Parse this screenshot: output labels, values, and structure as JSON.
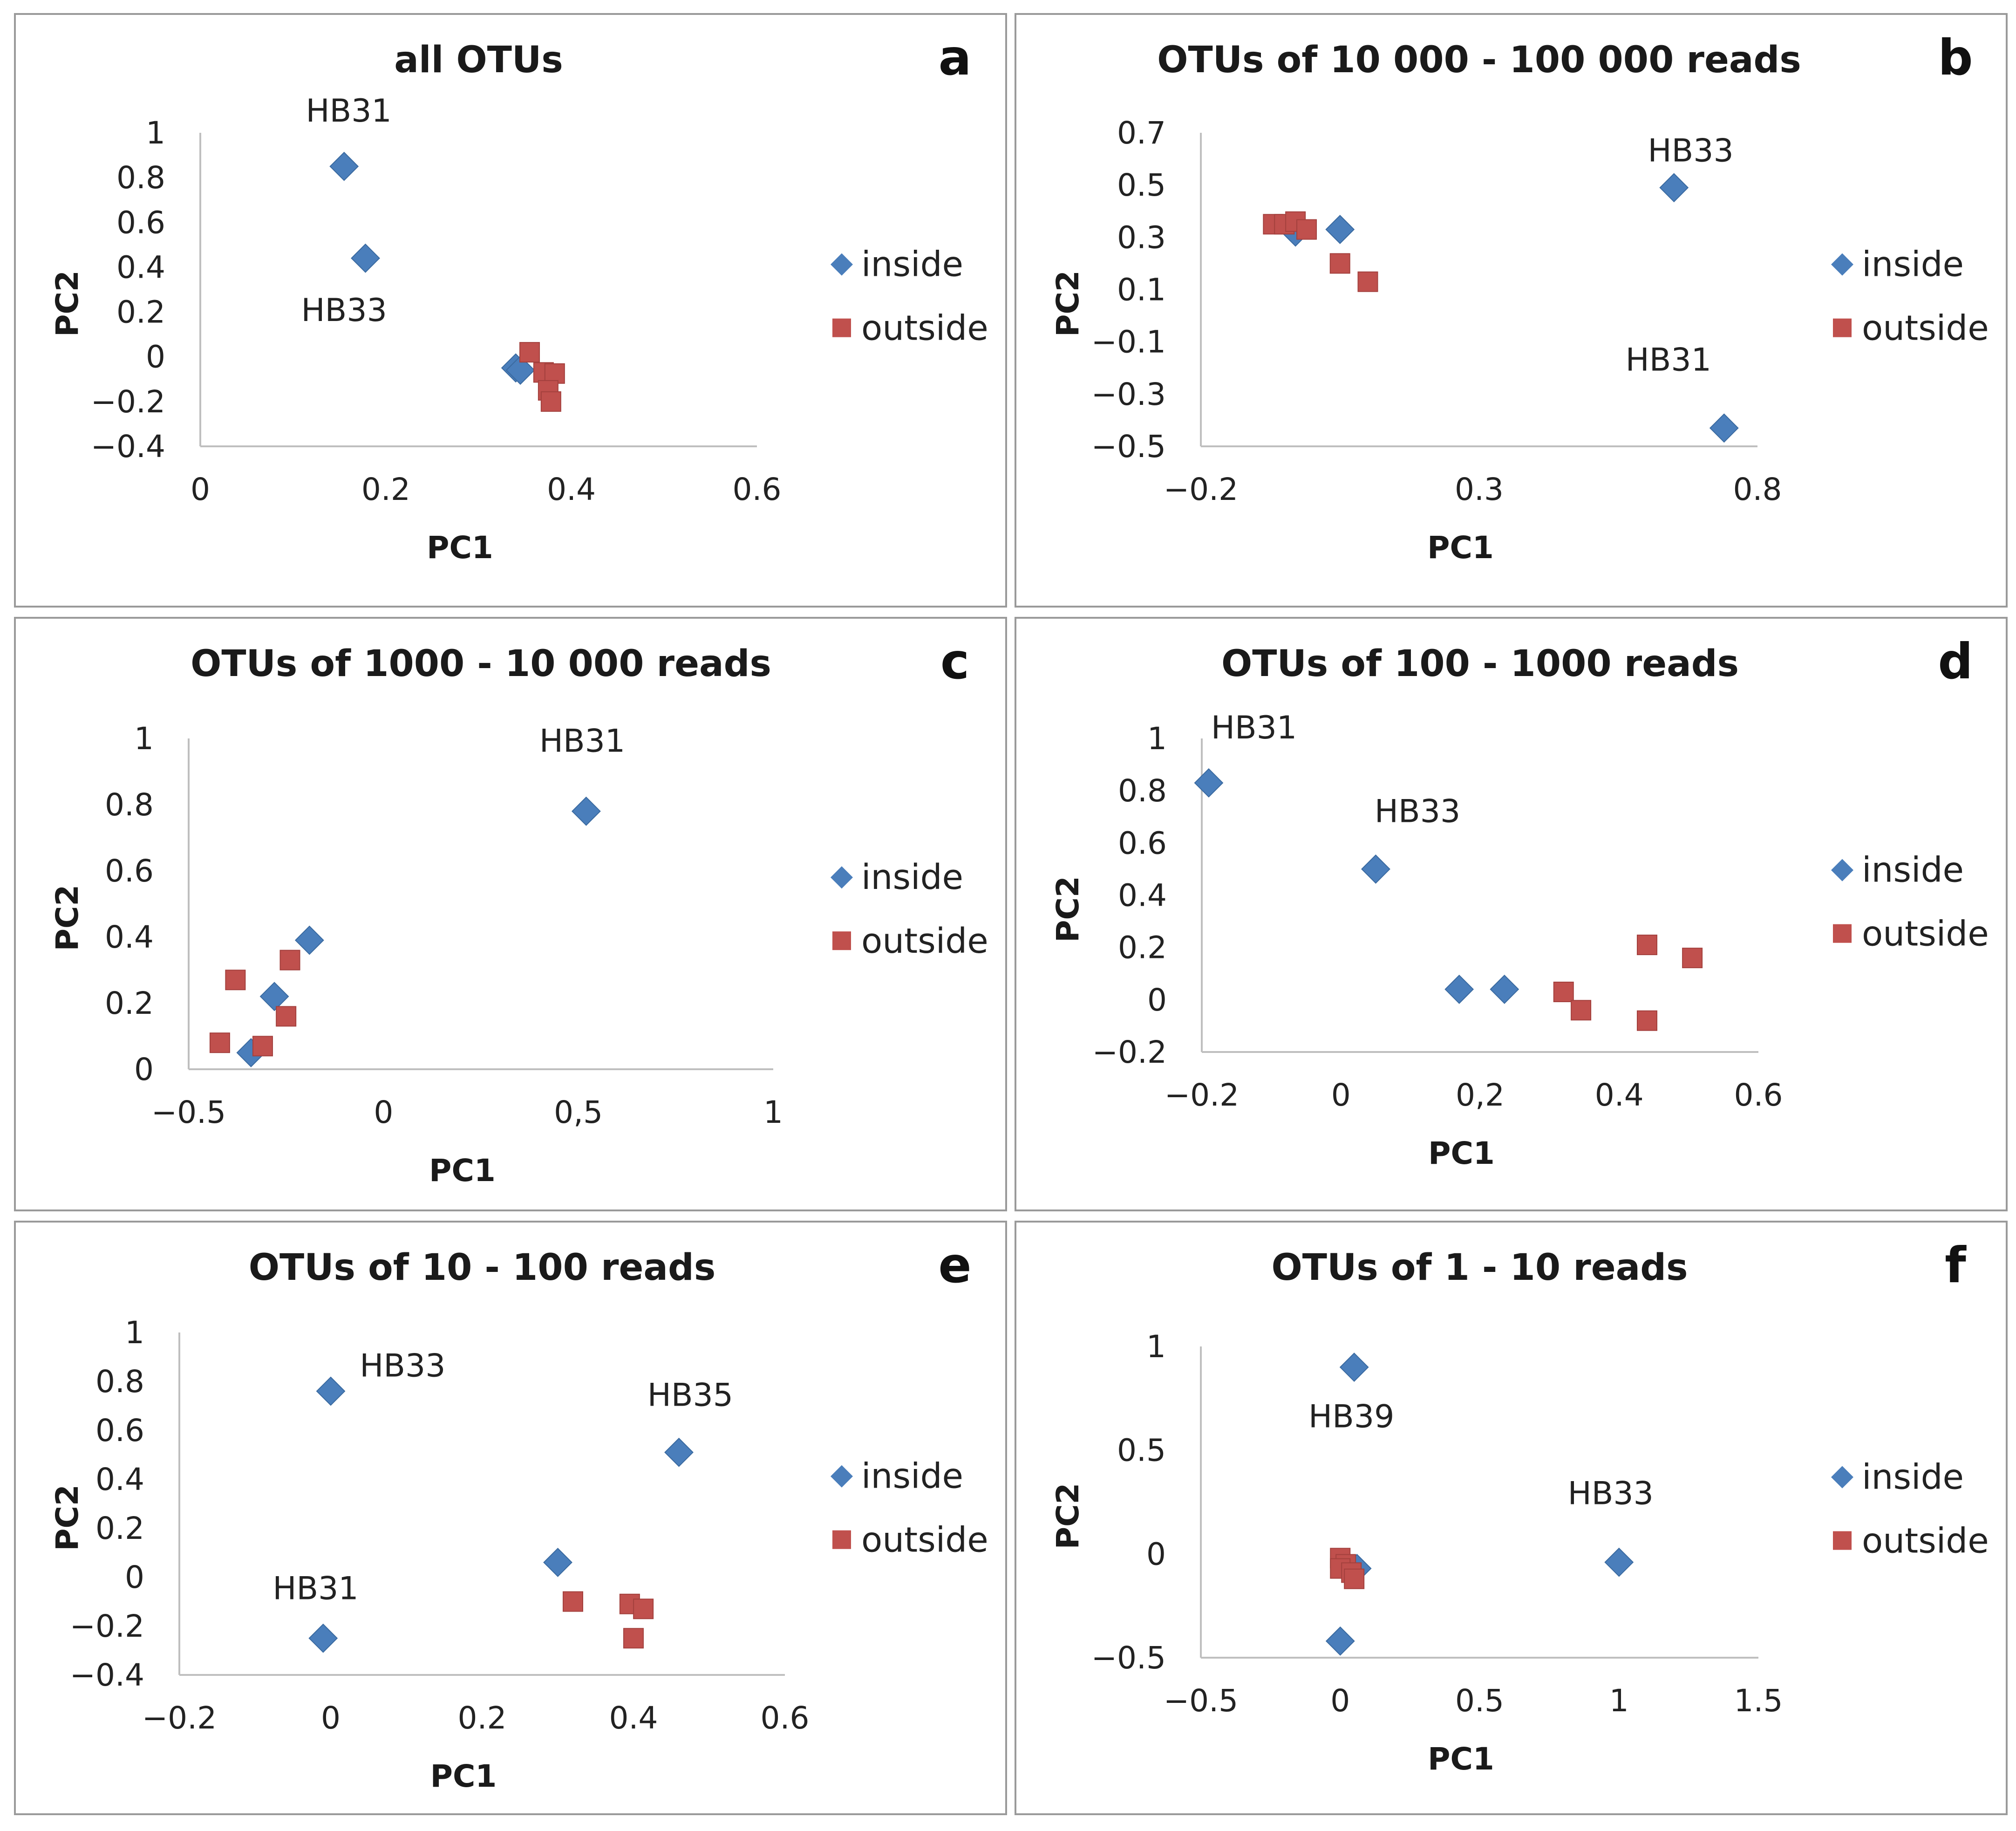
{
  "colors": {
    "inside": "#4a7ebb",
    "outside": "#c0504d",
    "axis": "#bfbfbf",
    "frame": "#9a9a9a"
  },
  "legend": {
    "inside_label": "inside",
    "outside_label": "outside"
  },
  "chart_data": [
    {
      "panel": "a",
      "type": "scatter",
      "title": "all OTUs",
      "xlabel": "PC1",
      "ylabel": "PC2",
      "xlim": [
        0,
        0.6
      ],
      "ylim": [
        -0.4,
        1
      ],
      "xticks": [
        {
          "value": 0,
          "label": "0"
        },
        {
          "value": 0.2,
          "label": "0.2"
        },
        {
          "value": 0.4,
          "label": "0.4"
        },
        {
          "value": 0.6,
          "label": "0.6"
        }
      ],
      "yticks": [
        {
          "value": 1,
          "label": "1"
        },
        {
          "value": 0.8,
          "label": "0.8"
        },
        {
          "value": 0.6,
          "label": "0.6"
        },
        {
          "value": 0.4,
          "label": "0.4"
        },
        {
          "value": 0.2,
          "label": "0.2"
        },
        {
          "value": 0,
          "label": "0"
        },
        {
          "value": -0.2,
          "label": "−0.2"
        },
        {
          "value": -0.4,
          "label": "−0.4"
        }
      ],
      "series": [
        {
          "name": "inside",
          "points": [
            [
              0.155,
              0.85
            ],
            [
              0.178,
              0.44
            ],
            [
              0.34,
              -0.05
            ],
            [
              0.345,
              -0.06
            ]
          ]
        },
        {
          "name": "outside",
          "points": [
            [
              0.355,
              0.02
            ],
            [
              0.37,
              -0.07
            ],
            [
              0.382,
              -0.075
            ],
            [
              0.375,
              -0.15
            ],
            [
              0.378,
              -0.2
            ]
          ]
        }
      ],
      "annotations": [
        {
          "text": "HB31",
          "x": 0.16,
          "y": 1.05
        },
        {
          "text": "HB33",
          "x": 0.155,
          "y": 0.16
        }
      ]
    },
    {
      "panel": "b",
      "type": "scatter",
      "title": "OTUs of 10 000 - 100 000 reads",
      "xlabel": "PC1",
      "ylabel": "PC2",
      "xlim": [
        -0.2,
        0.8
      ],
      "ylim": [
        -0.5,
        0.7
      ],
      "xticks": [
        {
          "value": -0.2,
          "label": "−0.2"
        },
        {
          "value": 0.3,
          "label": "0.3"
        },
        {
          "value": 0.8,
          "label": "0.8"
        }
      ],
      "yticks": [
        {
          "value": 0.7,
          "label": "0.7"
        },
        {
          "value": 0.5,
          "label": "0.5"
        },
        {
          "value": 0.3,
          "label": "0.3"
        },
        {
          "value": 0.1,
          "label": "0.1"
        },
        {
          "value": -0.1,
          "label": "−0.1"
        },
        {
          "value": -0.3,
          "label": "−0.3"
        },
        {
          "value": -0.5,
          "label": "−0.5"
        }
      ],
      "series": [
        {
          "name": "inside",
          "points": [
            [
              -0.03,
              0.32
            ],
            [
              0.05,
              0.33
            ],
            [
              0.65,
              0.49
            ],
            [
              0.74,
              -0.43
            ]
          ]
        },
        {
          "name": "outside",
          "points": [
            [
              -0.07,
              0.35
            ],
            [
              -0.05,
              0.35
            ],
            [
              -0.03,
              0.36
            ],
            [
              -0.01,
              0.33
            ],
            [
              0.05,
              0.2
            ],
            [
              0.1,
              0.13
            ]
          ]
        }
      ],
      "annotations": [
        {
          "text": "HB33",
          "x": 0.68,
          "y": 0.59
        },
        {
          "text": "HB31",
          "x": 0.64,
          "y": -0.21
        }
      ]
    },
    {
      "panel": "c",
      "type": "scatter",
      "title": "OTUs of 1000 - 10 000 reads",
      "xlabel": "PC1",
      "ylabel": "PC2",
      "xlim": [
        -0.5,
        1
      ],
      "ylim": [
        0,
        1
      ],
      "xticks": [
        {
          "value": -0.5,
          "label": "−0.5"
        },
        {
          "value": 0,
          "label": "0"
        },
        {
          "value": 0.5,
          "label": "0,5"
        },
        {
          "value": 1,
          "label": "1"
        }
      ],
      "yticks": [
        {
          "value": 1,
          "label": "1"
        },
        {
          "value": 0.8,
          "label": "0.8"
        },
        {
          "value": 0.6,
          "label": "0.6"
        },
        {
          "value": 0.4,
          "label": "0.4"
        },
        {
          "value": 0.2,
          "label": "0.2"
        },
        {
          "value": 0,
          "label": "0"
        }
      ],
      "series": [
        {
          "name": "inside",
          "points": [
            [
              0.52,
              0.78
            ],
            [
              -0.19,
              0.39
            ],
            [
              -0.28,
              0.22
            ],
            [
              -0.34,
              0.05
            ]
          ]
        },
        {
          "name": "outside",
          "points": [
            [
              -0.38,
              0.27
            ],
            [
              -0.24,
              0.33
            ],
            [
              -0.25,
              0.16
            ],
            [
              -0.42,
              0.08
            ],
            [
              -0.31,
              0.07
            ]
          ]
        }
      ],
      "annotations": [
        {
          "text": "HB31",
          "x": 0.51,
          "y": 0.96
        }
      ]
    },
    {
      "panel": "d",
      "type": "scatter",
      "title": "OTUs of 100 - 1000 reads",
      "xlabel": "PC1",
      "ylabel": "PC2",
      "xlim": [
        -0.2,
        0.6
      ],
      "ylim": [
        -0.2,
        1
      ],
      "xticks": [
        {
          "value": -0.2,
          "label": "−0.2"
        },
        {
          "value": 0,
          "label": "0"
        },
        {
          "value": 0.2,
          "label": "0,2"
        },
        {
          "value": 0.4,
          "label": "0.4"
        },
        {
          "value": 0.6,
          "label": "0.6"
        }
      ],
      "yticks": [
        {
          "value": 1,
          "label": "1"
        },
        {
          "value": 0.8,
          "label": "0.8"
        },
        {
          "value": 0.6,
          "label": "0.6"
        },
        {
          "value": 0.4,
          "label": "0.4"
        },
        {
          "value": 0.2,
          "label": "0.2"
        },
        {
          "value": 0,
          "label": "0"
        },
        {
          "value": -0.2,
          "label": "−0.2"
        }
      ],
      "series": [
        {
          "name": "inside",
          "points": [
            [
              -0.19,
              0.83
            ],
            [
              0.05,
              0.5
            ],
            [
              0.17,
              0.04
            ],
            [
              0.235,
              0.04
            ]
          ]
        },
        {
          "name": "outside",
          "points": [
            [
              0.32,
              0.03
            ],
            [
              0.345,
              -0.04
            ],
            [
              0.44,
              0.21
            ],
            [
              0.505,
              0.16
            ],
            [
              0.44,
              -0.08
            ]
          ]
        }
      ],
      "annotations": [
        {
          "text": "HB31",
          "x": -0.125,
          "y": 1.0
        },
        {
          "text": "HB33",
          "x": 0.11,
          "y": 0.68
        }
      ]
    },
    {
      "panel": "e",
      "type": "scatter",
      "title": "OTUs of 10 - 100 reads",
      "xlabel": "PC1",
      "ylabel": "PC2",
      "xlim": [
        -0.2,
        0.6
      ],
      "ylim": [
        -0.4,
        1
      ],
      "xticks": [
        {
          "value": -0.2,
          "label": "−0.2"
        },
        {
          "value": 0,
          "label": "0"
        },
        {
          "value": 0.2,
          "label": "0.2"
        },
        {
          "value": 0.4,
          "label": "0.4"
        },
        {
          "value": 0.6,
          "label": "0.6"
        }
      ],
      "yticks": [
        {
          "value": 1,
          "label": "1"
        },
        {
          "value": 0.8,
          "label": "0.8"
        },
        {
          "value": 0.6,
          "label": "0.6"
        },
        {
          "value": 0.4,
          "label": "0.4"
        },
        {
          "value": 0.2,
          "label": "0.2"
        },
        {
          "value": 0,
          "label": "0"
        },
        {
          "value": -0.2,
          "label": "−0.2"
        },
        {
          "value": -0.4,
          "label": "−0.4"
        }
      ],
      "series": [
        {
          "name": "inside",
          "points": [
            [
              0.0,
              0.76
            ],
            [
              0.46,
              0.51
            ],
            [
              0.3,
              0.06
            ],
            [
              -0.01,
              -0.25
            ]
          ]
        },
        {
          "name": "outside",
          "points": [
            [
              0.32,
              -0.1
            ],
            [
              0.395,
              -0.11
            ],
            [
              0.413,
              -0.13
            ],
            [
              0.4,
              -0.25
            ]
          ]
        }
      ],
      "annotations": [
        {
          "text": "HB33",
          "x": 0.095,
          "y": 0.82
        },
        {
          "text": "HB35",
          "x": 0.475,
          "y": 0.7
        },
        {
          "text": "HB31",
          "x": -0.02,
          "y": -0.09
        }
      ]
    },
    {
      "panel": "f",
      "type": "scatter",
      "title": "OTUs of 1 - 10 reads",
      "xlabel": "PC1",
      "ylabel": "PC2",
      "xlim": [
        -0.5,
        1.5
      ],
      "ylim": [
        -0.5,
        1
      ],
      "xticks": [
        {
          "value": -0.5,
          "label": "−0.5"
        },
        {
          "value": 0,
          "label": "0"
        },
        {
          "value": 0.5,
          "label": "0.5"
        },
        {
          "value": 1,
          "label": "1"
        },
        {
          "value": 1.5,
          "label": "1.5"
        }
      ],
      "yticks": [
        {
          "value": 1,
          "label": "1"
        },
        {
          "value": 0.5,
          "label": "0.5"
        },
        {
          "value": 0,
          "label": "0"
        },
        {
          "value": -0.5,
          "label": "−0.5"
        }
      ],
      "series": [
        {
          "name": "inside",
          "points": [
            [
              0.05,
              0.9
            ],
            [
              1.0,
              -0.04
            ],
            [
              0.0,
              -0.42
            ],
            [
              0.06,
              -0.07
            ]
          ]
        },
        {
          "name": "outside",
          "points": [
            [
              0.0,
              -0.02
            ],
            [
              0.02,
              -0.05
            ],
            [
              0.0,
              -0.07
            ],
            [
              0.04,
              -0.09
            ],
            [
              0.05,
              -0.12
            ]
          ]
        }
      ],
      "annotations": [
        {
          "text": "HB39",
          "x": 0.04,
          "y": 0.61
        },
        {
          "text": "HB33",
          "x": 0.97,
          "y": 0.24
        }
      ]
    }
  ]
}
